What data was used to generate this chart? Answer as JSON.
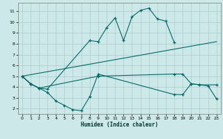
{
  "background_color": "#cce8e8",
  "grid_color": "#aacccc",
  "line_color": "#006666",
  "xlabel": "Humidex (Indice chaleur)",
  "xlim": [
    -0.5,
    23.5
  ],
  "ylim": [
    1.5,
    11.8
  ],
  "xticks": [
    0,
    1,
    2,
    3,
    4,
    5,
    6,
    7,
    8,
    9,
    10,
    11,
    12,
    13,
    14,
    15,
    16,
    17,
    18,
    19,
    20,
    21,
    22,
    23
  ],
  "yticks": [
    2,
    3,
    4,
    5,
    6,
    7,
    8,
    9,
    10,
    11
  ],
  "line1_x": [
    0,
    1,
    2,
    3,
    8,
    9,
    10,
    11,
    12,
    13,
    14,
    15,
    16,
    17,
    18
  ],
  "line1_y": [
    5.0,
    4.3,
    3.9,
    3.8,
    8.3,
    8.2,
    9.5,
    10.4,
    8.3,
    10.5,
    11.1,
    11.3,
    10.3,
    10.1,
    8.1
  ],
  "line2_x": [
    0,
    23
  ],
  "line2_y": [
    5.0,
    8.2
  ],
  "line3_x": [
    0,
    1,
    2,
    9,
    18,
    19,
    20,
    21,
    23
  ],
  "line3_y": [
    5.0,
    4.3,
    3.9,
    5.0,
    5.2,
    5.2,
    4.3,
    4.2,
    4.2
  ],
  "line4_x": [
    0,
    1,
    2,
    3,
    4,
    5,
    6,
    7,
    8,
    9,
    18,
    19,
    20,
    21,
    22,
    23
  ],
  "line4_y": [
    5.0,
    4.3,
    3.9,
    3.5,
    2.7,
    2.3,
    1.9,
    1.8,
    3.1,
    5.2,
    3.3,
    3.3,
    4.3,
    4.2,
    4.1,
    2.9
  ]
}
